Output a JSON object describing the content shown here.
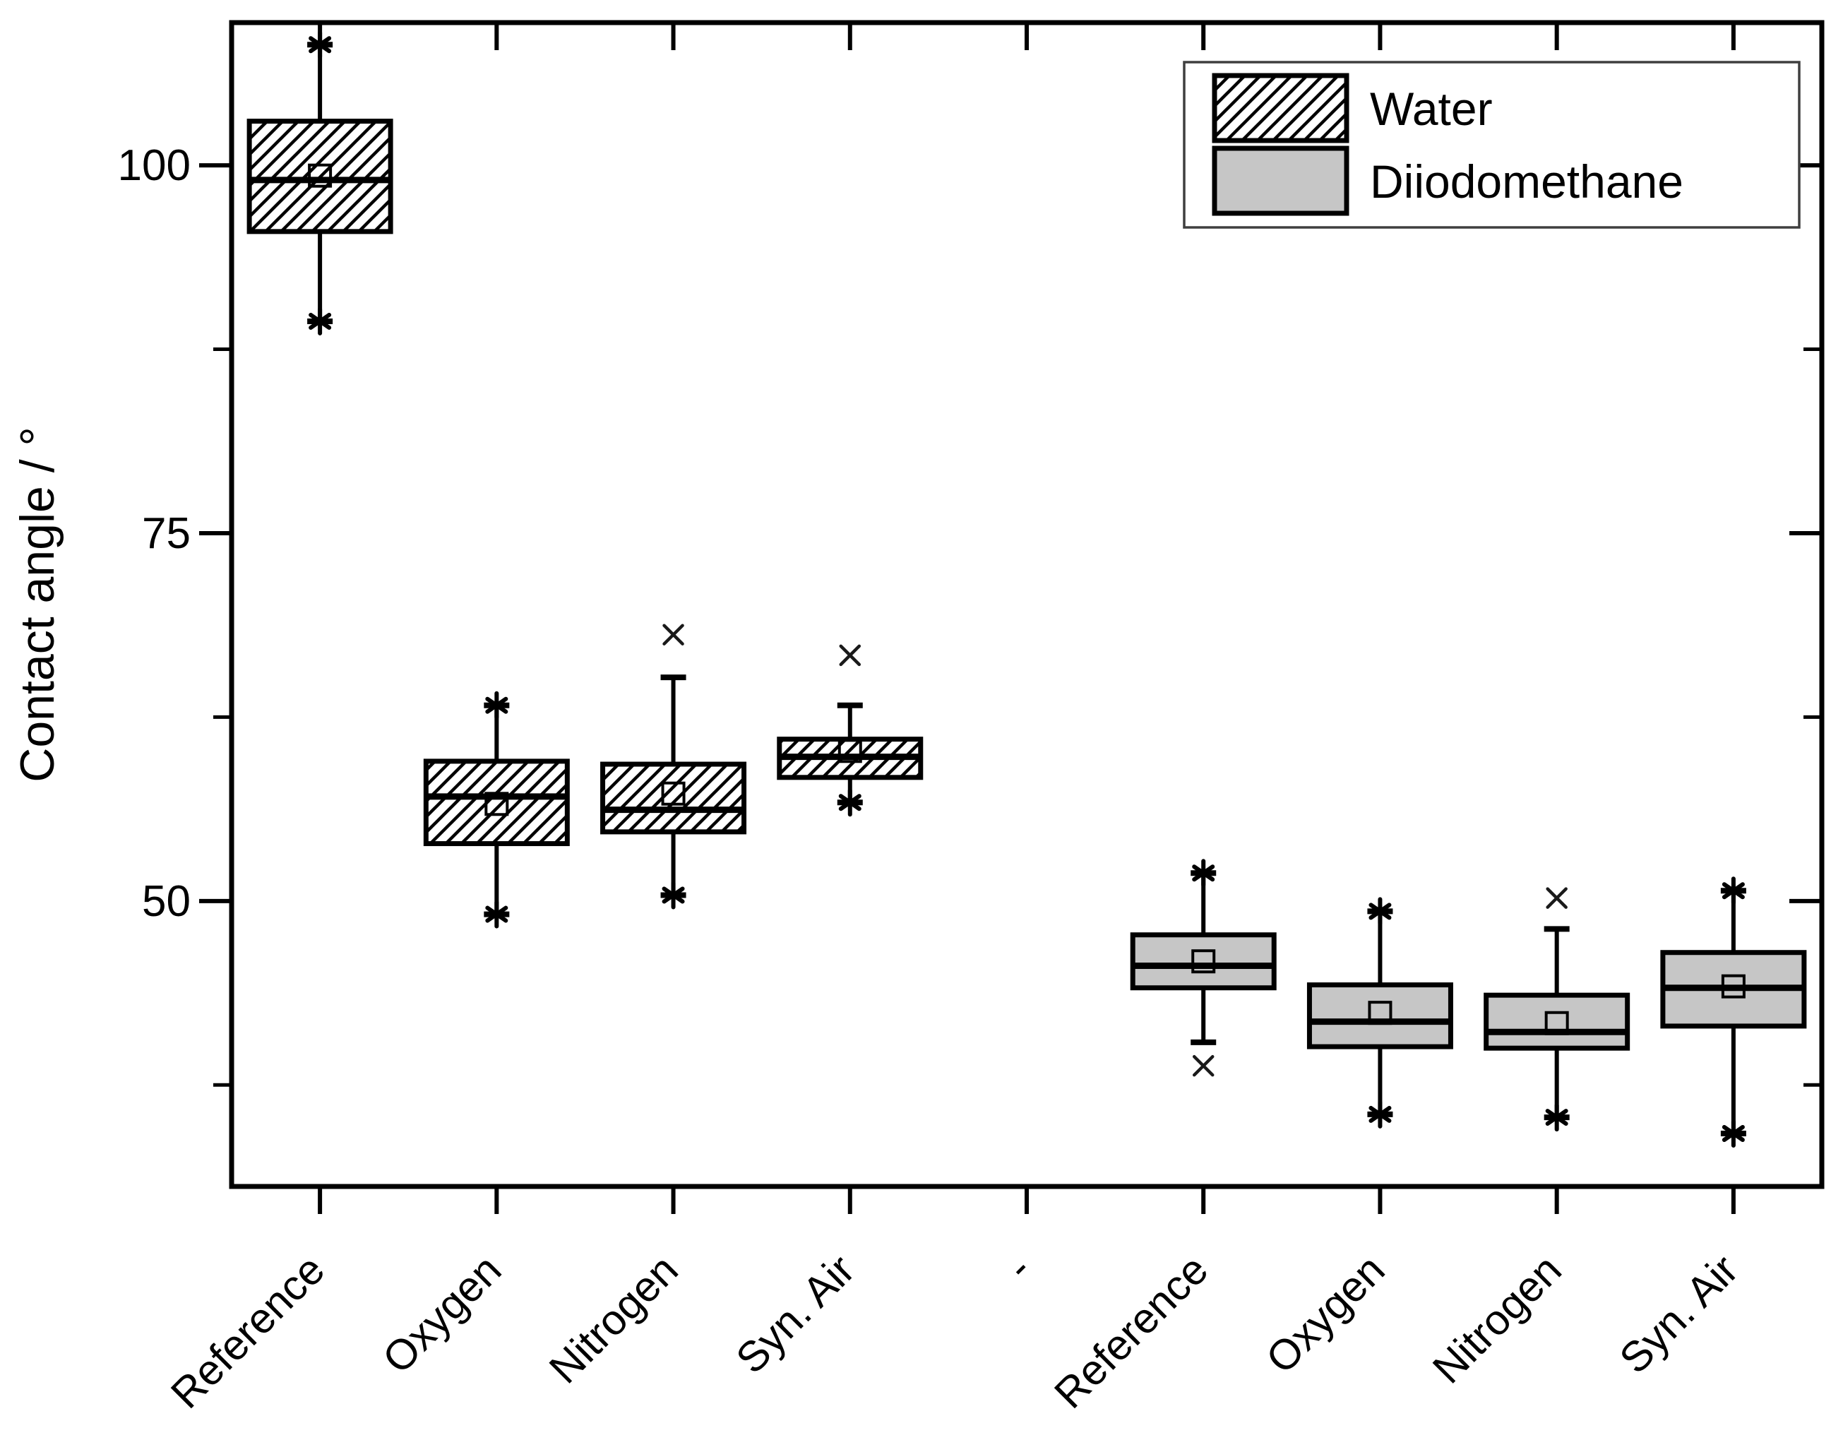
{
  "figure": {
    "background": "#ffffff",
    "stroke_color": "#000000",
    "gray_fill": "#c6c6c6",
    "legend_frame_color": "#3f3f3f"
  },
  "chart_data": {
    "type": "box",
    "title": "",
    "xlabel": "",
    "ylabel": "Contact angle  / °",
    "ylim": [
      30.6,
      109.7
    ],
    "yticks_major": [
      50,
      75,
      100
    ],
    "yticks_minor": [
      37.5,
      62.5,
      87.5
    ],
    "grid": false,
    "legend_position": "top-right",
    "categories": [
      "Reference",
      "Oxygen",
      "Nitrogen",
      "Syn. Air",
      "-",
      "Reference",
      "Oxygen",
      "Nitrogen",
      "Syn. Air"
    ],
    "series": [
      {
        "name": "Water",
        "fill": "hatch"
      },
      {
        "name": "Diiodomethane",
        "fill": "#c6c6c6"
      }
    ],
    "boxes": [
      {
        "position": 1,
        "category": "Reference",
        "series": "Water",
        "whisker_low": 89.4,
        "q1": 95.5,
        "median": 99.0,
        "mean": 99.3,
        "q3": 103.0,
        "whisker_high": 108.2,
        "star_low": true,
        "star_high": true,
        "cross_outliers": []
      },
      {
        "position": 2,
        "category": "Oxygen",
        "series": "Water",
        "whisker_low": 49.1,
        "q1": 53.9,
        "median": 57.1,
        "mean": 56.6,
        "q3": 59.5,
        "whisker_high": 63.3,
        "star_low": true,
        "star_high": true,
        "cross_outliers": []
      },
      {
        "position": 3,
        "category": "Nitrogen",
        "series": "Water",
        "whisker_low": 50.4,
        "q1": 54.7,
        "median": 56.2,
        "mean": 57.3,
        "q3": 59.3,
        "whisker_high": 65.2,
        "star_low": true,
        "star_high": false,
        "cross_outliers": [
          68.1
        ]
      },
      {
        "position": 4,
        "category": "Syn. Air",
        "series": "Water",
        "whisker_low": 56.7,
        "q1": 58.4,
        "median": 59.8,
        "mean": 60.2,
        "q3": 61.0,
        "whisker_high": 63.3,
        "star_low": true,
        "star_high": false,
        "cross_outliers": [
          66.7
        ]
      },
      {
        "position": 6,
        "category": "Reference",
        "series": "Diiodomethane",
        "whisker_low": 40.4,
        "q1": 44.1,
        "median": 45.6,
        "mean": 45.9,
        "q3": 47.7,
        "whisker_high": 51.9,
        "star_low": false,
        "star_high": true,
        "cross_outliers": [
          38.8
        ]
      },
      {
        "position": 7,
        "category": "Oxygen",
        "series": "Diiodomethane",
        "whisker_low": 35.5,
        "q1": 40.1,
        "median": 41.8,
        "mean": 42.4,
        "q3": 44.3,
        "whisker_high": 49.3,
        "star_low": true,
        "star_high": true,
        "cross_outliers": []
      },
      {
        "position": 8,
        "category": "Nitrogen",
        "series": "Diiodomethane",
        "whisker_low": 35.3,
        "q1": 40.0,
        "median": 41.1,
        "mean": 41.7,
        "q3": 43.6,
        "whisker_high": 48.1,
        "star_low": true,
        "star_high": false,
        "cross_outliers": [
          50.2
        ]
      },
      {
        "position": 9,
        "category": "Syn. Air",
        "series": "Diiodomethane",
        "whisker_low": 34.2,
        "q1": 41.5,
        "median": 44.1,
        "mean": 44.2,
        "q3": 46.5,
        "whisker_high": 50.7,
        "star_low": true,
        "star_high": true,
        "cross_outliers": []
      }
    ],
    "legend": [
      {
        "label": "Water",
        "fill": "hatch"
      },
      {
        "label": "Diiodomethane",
        "fill": "#c6c6c6"
      }
    ]
  }
}
